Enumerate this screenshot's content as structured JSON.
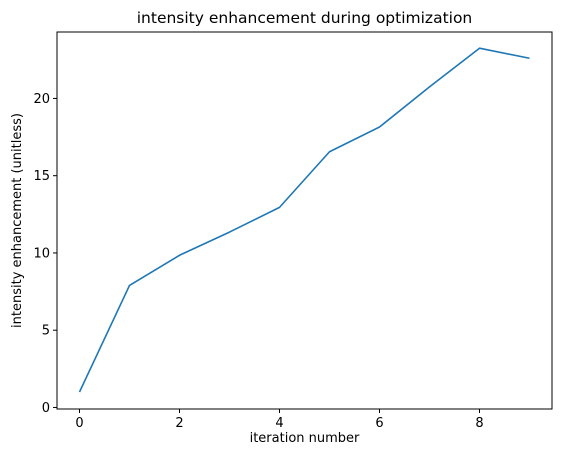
{
  "chart_data": {
    "type": "line",
    "title": "intensity enhancement during optimization",
    "xlabel": "iteration number",
    "ylabel": "intensity enhancement (unitless)",
    "xlim": [
      -0.45,
      9.45
    ],
    "ylim": [
      -0.1,
      24.3
    ],
    "xticks": [
      0,
      2,
      4,
      6,
      8
    ],
    "yticks": [
      0,
      5,
      10,
      15,
      20
    ],
    "grid": false,
    "series": [
      {
        "color": "#1f77b4",
        "x": [
          0,
          1,
          2,
          3,
          4,
          5,
          6,
          7,
          8,
          9
        ],
        "y": [
          1.0,
          7.9,
          9.85,
          11.35,
          12.95,
          16.55,
          18.15,
          20.75,
          23.25,
          22.6
        ]
      }
    ]
  }
}
